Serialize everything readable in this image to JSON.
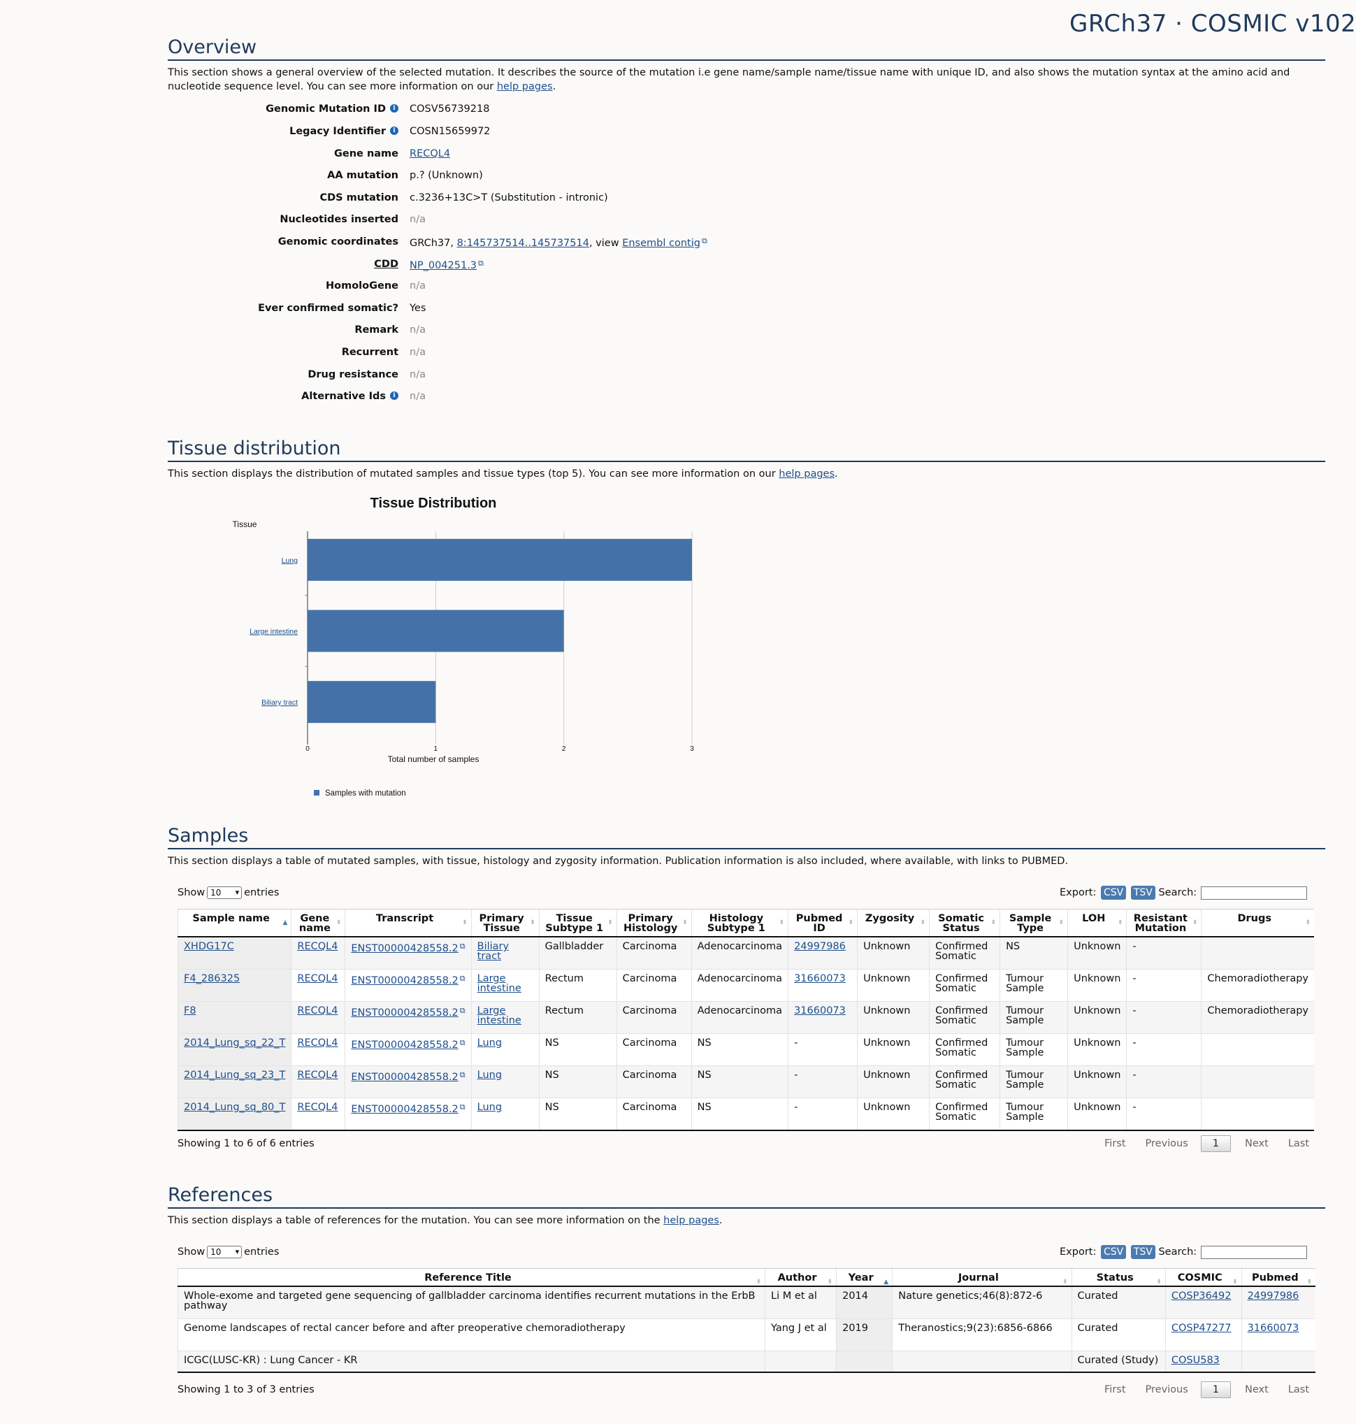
{
  "header": {
    "assembly": "GRCh37 · COSMIC v102"
  },
  "overview": {
    "title": "Overview",
    "desc_pre": "This section shows a general overview of the selected mutation. It describes the source of the mutation i.e gene name/sample name/tissue name with unique ID, and also shows the mutation syntax at the amino acid and nucleotide sequence level. You can see more information on our ",
    "help_link": "help pages",
    "desc_post": ".",
    "fields": {
      "genomic_mutation_id": {
        "label": "Genomic Mutation ID",
        "value": "COSV56739218"
      },
      "legacy_identifier": {
        "label": "Legacy Identifier",
        "value": "COSN15659972"
      },
      "gene_name": {
        "label": "Gene name",
        "value": "RECQL4"
      },
      "aa_mutation": {
        "label": "AA mutation",
        "value": "p.? (Unknown)"
      },
      "cds_mutation": {
        "label": "CDS mutation",
        "value": "c.3236+13C>T (Substitution - intronic)"
      },
      "nucleotides_inserted": {
        "label": "Nucleotides inserted",
        "value": "n/a"
      },
      "genomic_coordinates": {
        "label": "Genomic coordinates",
        "prefix": "GRCh37, ",
        "coord_link": "8:145737514..145737514",
        "mid": ", view ",
        "ensembl_link": "Ensembl contig"
      },
      "cdd": {
        "label": "CDD",
        "value": "NP_004251.3"
      },
      "homologene": {
        "label": "HomoloGene",
        "value": "n/a"
      },
      "ever_confirmed": {
        "label": "Ever confirmed somatic?",
        "value": "Yes"
      },
      "remark": {
        "label": "Remark",
        "value": "n/a"
      },
      "recurrent": {
        "label": "Recurrent",
        "value": "n/a"
      },
      "drug_resistance": {
        "label": "Drug resistance",
        "value": "n/a"
      },
      "alternative_ids": {
        "label": "Alternative Ids",
        "value": "n/a"
      }
    }
  },
  "tissue": {
    "title": "Tissue distribution",
    "desc_pre": "This section displays the distribution of mutated samples and tissue types (top 5). You can see more information on our ",
    "help_link": "help pages",
    "desc_post": "."
  },
  "chart_data": {
    "type": "bar",
    "orientation": "horizontal",
    "title": "Tissue Distribution",
    "ylabel": "Tissue",
    "xlabel": "Total number of samples",
    "categories": [
      "Lung",
      "Large intestine",
      "Biliary tract"
    ],
    "series": [
      {
        "name": "Samples with mutation",
        "values": [
          3,
          2,
          1
        ]
      }
    ],
    "xlim": [
      0,
      3
    ],
    "xticks": [
      "0",
      "1",
      "2",
      "3"
    ],
    "grid": true,
    "legend": "bottom-left",
    "bar_color": "#4472a8"
  },
  "samples": {
    "title": "Samples",
    "desc": "This section displays a table of mutated samples, with tissue, histology and zygosity information. Publication information is also included, where available, with links to PUBMED.",
    "show_pre": "Show",
    "show_value": "10",
    "show_post": "entries",
    "export_label": "Export:",
    "csv": "CSV",
    "tsv": "TSV",
    "search_label": "Search:",
    "columns": [
      "Sample name",
      "Gene name",
      "Transcript",
      "Primary Tissue",
      "Tissue Subtype 1",
      "Primary Histology",
      "Histology Subtype 1",
      "Pubmed ID",
      "Zygosity",
      "Somatic Status",
      "Sample Type",
      "LOH",
      "Resistant Mutation",
      "Drugs"
    ],
    "rows": [
      [
        "XHDG17C",
        "RECQL4",
        "ENST00000428558.2",
        "Biliary tract",
        "Gallbladder",
        "Carcinoma",
        "Adenocarcinoma",
        "24997986",
        "Unknown",
        "Confirmed Somatic",
        "NS",
        "Unknown",
        "-",
        ""
      ],
      [
        "F4_286325",
        "RECQL4",
        "ENST00000428558.2",
        "Large intestine",
        "Rectum",
        "Carcinoma",
        "Adenocarcinoma",
        "31660073",
        "Unknown",
        "Confirmed Somatic",
        "Tumour Sample",
        "Unknown",
        "-",
        "Chemoradiotherapy"
      ],
      [
        "F8",
        "RECQL4",
        "ENST00000428558.2",
        "Large intestine",
        "Rectum",
        "Carcinoma",
        "Adenocarcinoma",
        "31660073",
        "Unknown",
        "Confirmed Somatic",
        "Tumour Sample",
        "Unknown",
        "-",
        "Chemoradiotherapy"
      ],
      [
        "2014_Lung_sq_22_T",
        "RECQL4",
        "ENST00000428558.2",
        "Lung",
        "NS",
        "Carcinoma",
        "NS",
        "-",
        "Unknown",
        "Confirmed Somatic",
        "Tumour Sample",
        "Unknown",
        "-",
        ""
      ],
      [
        "2014_Lung_sq_23_T",
        "RECQL4",
        "ENST00000428558.2",
        "Lung",
        "NS",
        "Carcinoma",
        "NS",
        "-",
        "Unknown",
        "Confirmed Somatic",
        "Tumour Sample",
        "Unknown",
        "-",
        ""
      ],
      [
        "2014_Lung_sq_80_T",
        "RECQL4",
        "ENST00000428558.2",
        "Lung",
        "NS",
        "Carcinoma",
        "NS",
        "-",
        "Unknown",
        "Confirmed Somatic",
        "Tumour Sample",
        "Unknown",
        "-",
        ""
      ]
    ],
    "info": "Showing 1 to 6 of 6 entries",
    "pager": {
      "first": "First",
      "previous": "Previous",
      "current": "1",
      "next": "Next",
      "last": "Last"
    }
  },
  "references": {
    "title": "References",
    "desc_pre": "This section displays a table of references for the mutation. You can see more information on the ",
    "help_link": "help pages",
    "desc_post": ".",
    "show_pre": "Show",
    "show_value": "10",
    "show_post": "entries",
    "export_label": "Export:",
    "csv": "CSV",
    "tsv": "TSV",
    "search_label": "Search:",
    "columns": [
      "Reference Title",
      "Author",
      "Year",
      "Journal",
      "Status",
      "COSMIC",
      "Pubmed"
    ],
    "rows": [
      [
        "Whole-exome and targeted gene sequencing of gallbladder carcinoma identifies recurrent mutations in the ErbB pathway",
        "Li M et al",
        "2014",
        "Nature genetics;46(8):872-6",
        "Curated",
        "COSP36492",
        "24997986"
      ],
      [
        "Genome landscapes of rectal cancer before and after preoperative chemoradiotherapy",
        "Yang J et al",
        "2019",
        "Theranostics;9(23):6856-6866",
        "Curated",
        "COSP47277",
        "31660073"
      ],
      [
        "ICGC(LUSC-KR) : Lung Cancer - KR",
        "",
        "",
        "",
        "Curated (Study)",
        "COSU583",
        ""
      ]
    ],
    "info": "Showing 1 to 3 of 3 entries",
    "pager": {
      "first": "First",
      "previous": "Previous",
      "current": "1",
      "next": "Next",
      "last": "Last"
    }
  }
}
